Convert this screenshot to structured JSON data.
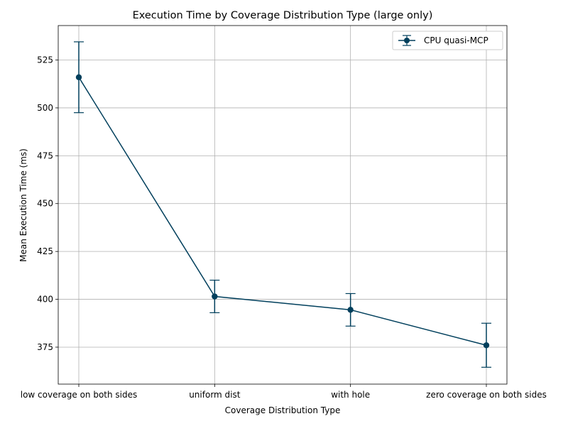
{
  "chart_data": {
    "type": "line",
    "title": "Execution Time by Coverage Distribution Type (large only)",
    "xlabel": "Coverage Distribution Type",
    "ylabel": "Mean Execution Time (ms)",
    "categories": [
      "low coverage on both sides",
      "uniform dist",
      "with hole",
      "zero coverage on both sides"
    ],
    "series": [
      {
        "name": "CPU quasi-MCP",
        "values": [
          516,
          401.5,
          394.5,
          376
        ],
        "error_low": [
          497.5,
          393,
          386,
          364.5
        ],
        "error_high": [
          534.5,
          410,
          403,
          387.5
        ]
      }
    ],
    "ylim": [
      355.7,
      543.0
    ],
    "yticks": [
      375,
      400,
      425,
      450,
      475,
      500,
      525
    ],
    "grid": true,
    "legend": "top-right",
    "colors": {
      "series": "#003f5c",
      "grid": "#b0b0b0"
    }
  }
}
